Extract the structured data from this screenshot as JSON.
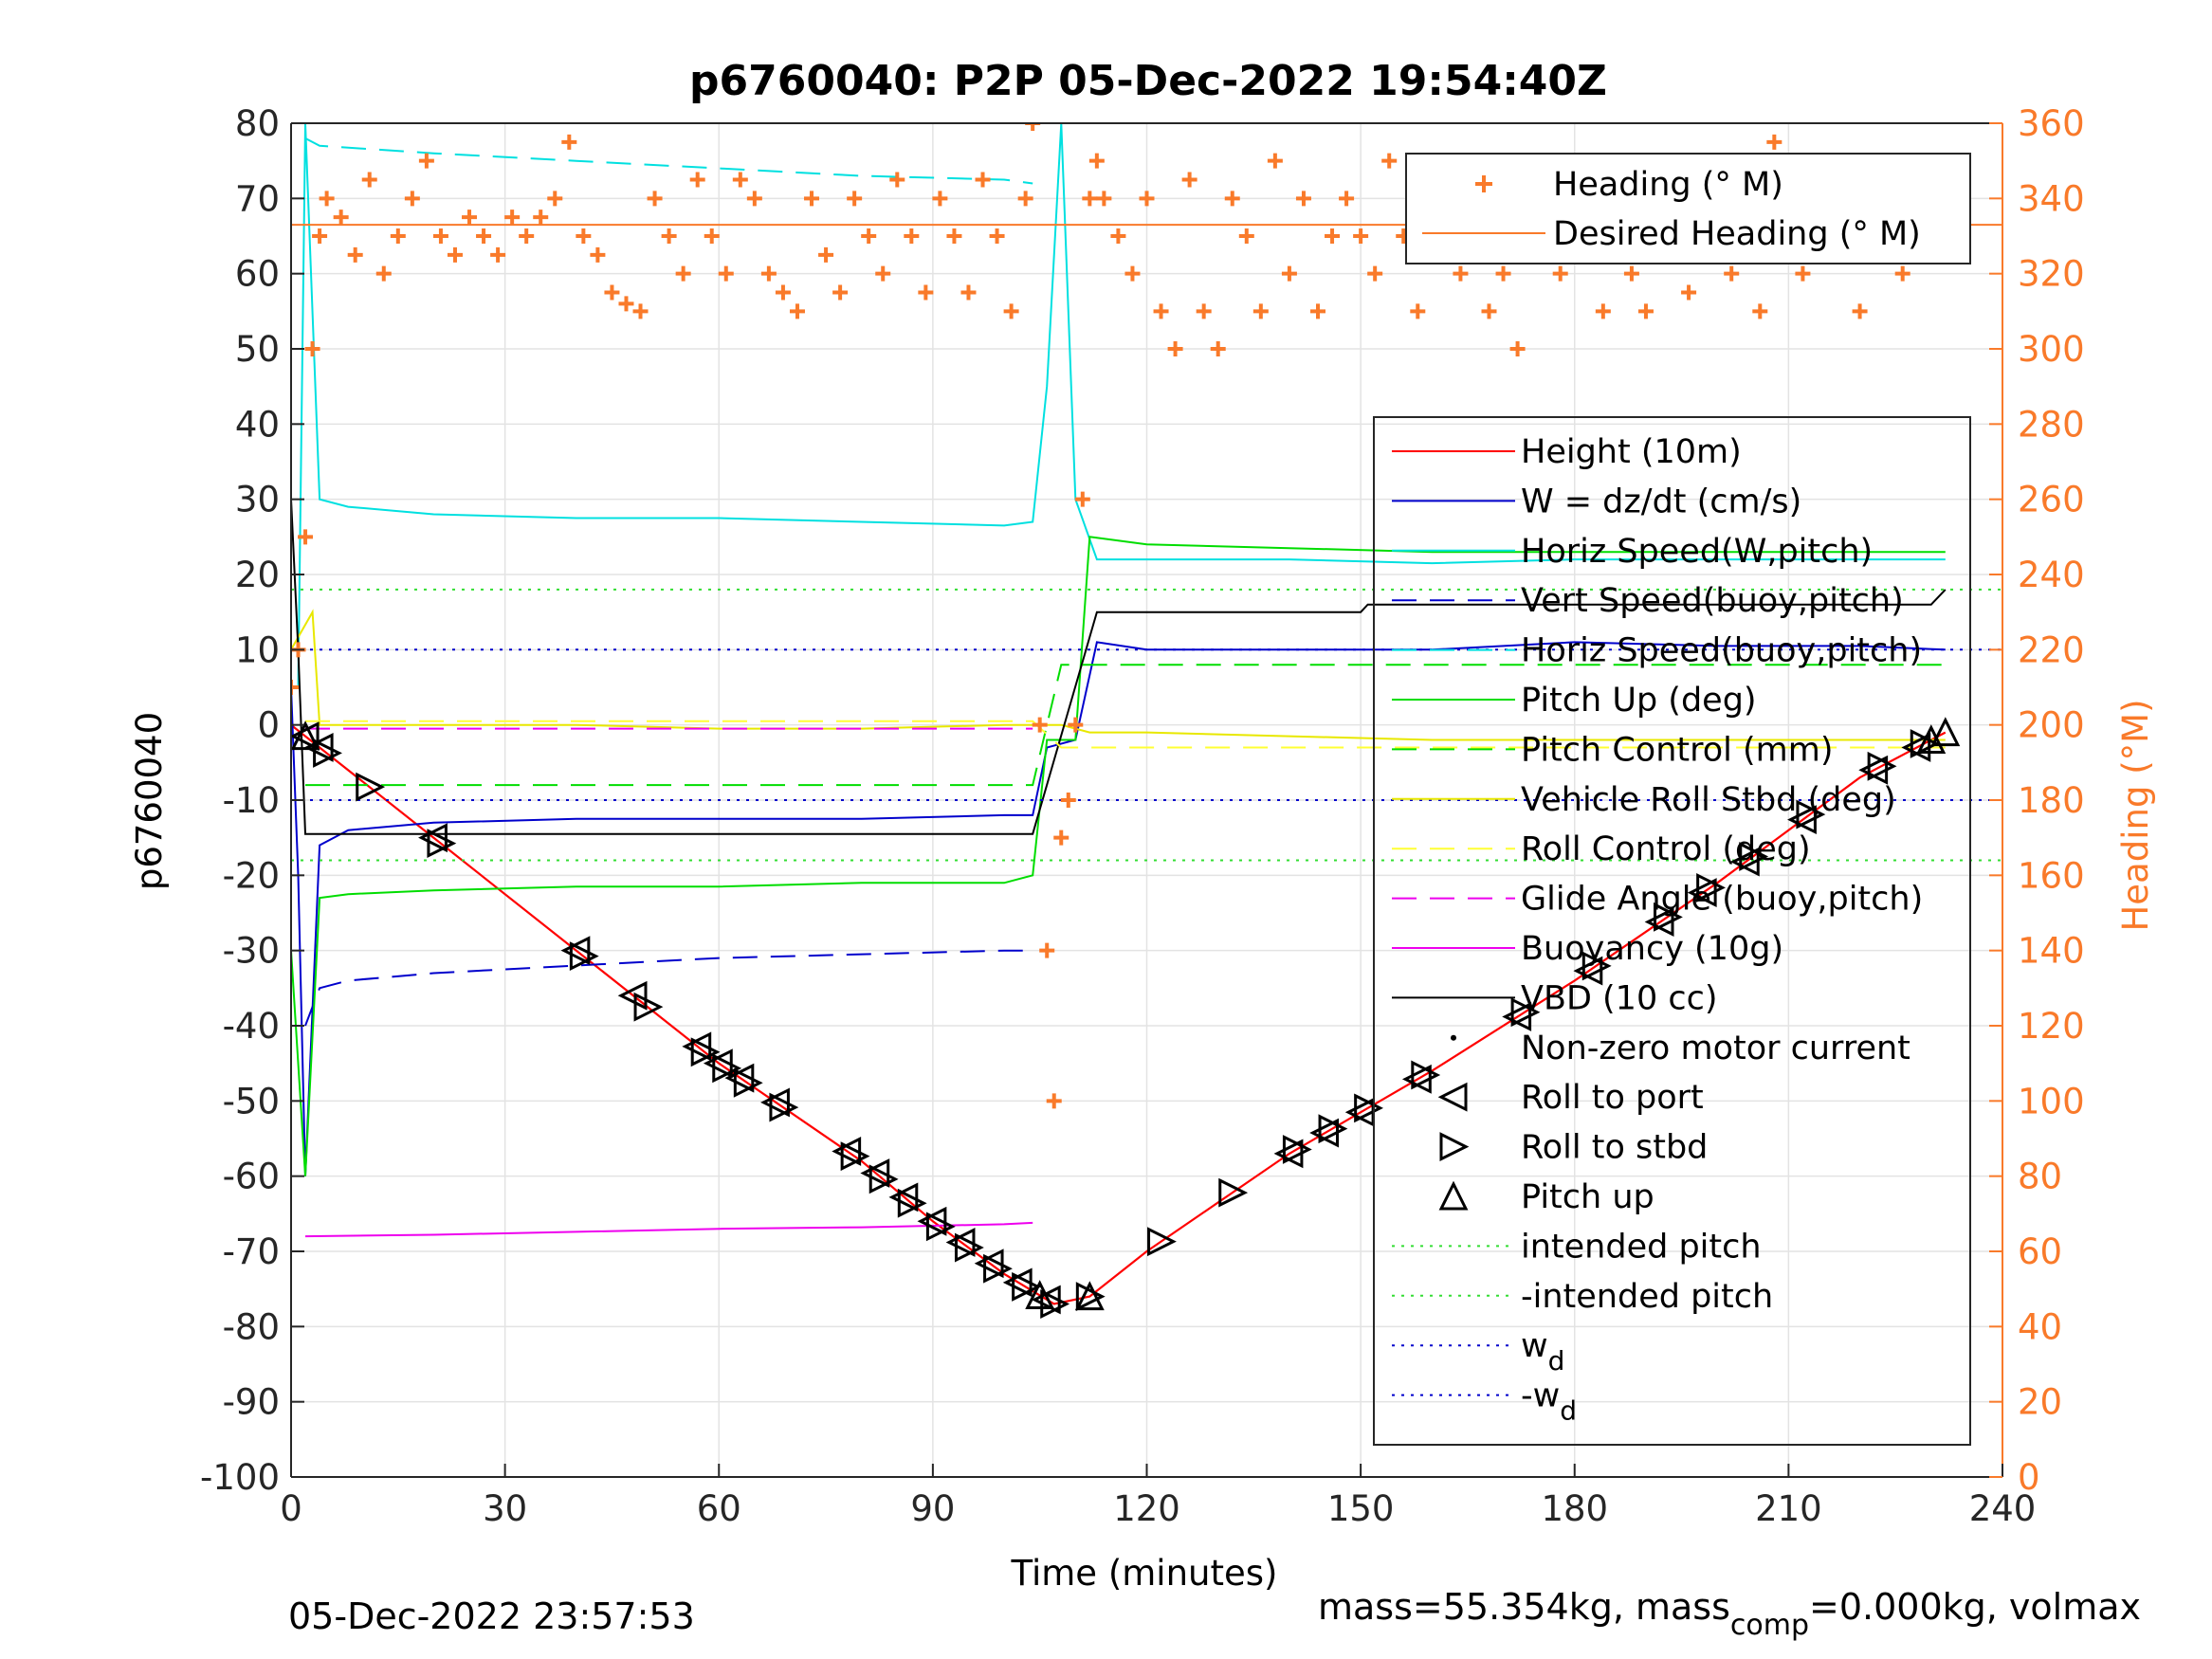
{
  "chart_data": {
    "type": "line",
    "title": "p6760040: P2P 05-Dec-2022 19:54:40Z",
    "xlabel": "Time (minutes)",
    "ylabel": "p6760040",
    "ylabel_right": "Heading (°M)",
    "xlim": [
      0,
      240
    ],
    "ylim": [
      -100,
      80
    ],
    "ylim_right": [
      0,
      360
    ],
    "x_ticks": [
      0,
      30,
      60,
      90,
      120,
      150,
      180,
      210,
      240
    ],
    "y_ticks": [
      80,
      70,
      60,
      50,
      40,
      30,
      20,
      10,
      0,
      -10,
      -20,
      -30,
      -40,
      -50,
      -60,
      -70,
      -80,
      -90,
      -100
    ],
    "y_right_ticks": [
      360,
      340,
      320,
      300,
      280,
      260,
      240,
      220,
      200,
      180,
      160,
      140,
      120,
      100,
      80,
      60,
      40,
      20,
      0
    ],
    "grid": true,
    "footer_left": "05-Dec-2022 23:57:53",
    "footer_right_pre": "mass=55.354kg, mass",
    "footer_right_sub": "comp",
    "footer_right_post": "=0.000kg, volmax",
    "legend_heading": [
      {
        "name": "Heading (° M)",
        "color": "#f97a2a",
        "style": "marker-plus"
      },
      {
        "name": "Desired Heading (° M)",
        "color": "#f97a2a",
        "style": "solid"
      }
    ],
    "legend_main": [
      {
        "name": "Height (10m)",
        "color": "#ff0000",
        "style": "solid"
      },
      {
        "name": "W = dz/dt (cm/s)",
        "color": "#0000cc",
        "style": "solid"
      },
      {
        "name": "Horiz Speed(W,pitch)",
        "color": "#00e0e0",
        "style": "solid"
      },
      {
        "name": "Vert Speed(buoy,pitch)",
        "color": "#0000cc",
        "style": "dashed"
      },
      {
        "name": "Horiz Speed(buoy,pitch)",
        "color": "#00e0e0",
        "style": "dashed"
      },
      {
        "name": "Pitch Up (deg)",
        "color": "#00dd00",
        "style": "solid"
      },
      {
        "name": "Pitch Control (mm)",
        "color": "#00dd00",
        "style": "dashed"
      },
      {
        "name": "Vehicle Roll Stbd (deg)",
        "color": "#e8e800",
        "style": "solid"
      },
      {
        "name": "Roll Control (deg)",
        "color": "#ffff33",
        "style": "dashed"
      },
      {
        "name": "Glide Angle (buoy,pitch)",
        "color": "#ee00ee",
        "style": "dashed"
      },
      {
        "name": "Buoyancy (10g)",
        "color": "#ee00ee",
        "style": "solid"
      },
      {
        "name": "VBD (10 cc)",
        "color": "#000000",
        "style": "solid"
      },
      {
        "name": "Non-zero motor current",
        "color": "#000000",
        "style": "dot"
      },
      {
        "name": "Roll to port",
        "color": "#000000",
        "style": "tri-left"
      },
      {
        "name": "Roll to stbd",
        "color": "#000000",
        "style": "tri-right"
      },
      {
        "name": "Pitch up",
        "color": "#000000",
        "style": "tri-up"
      },
      {
        "name": "intended pitch",
        "color": "#33dd33",
        "style": "dotted"
      },
      {
        "name": "-intended pitch",
        "color": "#33dd33",
        "style": "dotted"
      },
      {
        "name": "w",
        "sub": "d",
        "color": "#0000cc",
        "style": "dotted"
      },
      {
        "name": "-w",
        "sub": "d",
        "color": "#0000cc",
        "style": "dotted"
      }
    ],
    "series": [
      {
        "name": "Height (10m)",
        "axis": "left",
        "color": "#ff0000",
        "x": [
          0,
          20,
          40,
          60,
          80,
          90,
          100,
          107,
          112,
          120,
          140,
          160,
          180,
          200,
          220,
          232
        ],
        "y": [
          0,
          -15,
          -30,
          -45,
          -58,
          -66,
          -73,
          -77,
          -76,
          -70,
          -57,
          -46,
          -34,
          -21,
          -7,
          -1
        ]
      },
      {
        "name": "W = dz/dt (cm/s)",
        "axis": "left",
        "color": "#0000cc",
        "x": [
          0,
          1,
          2,
          4,
          8,
          20,
          40,
          60,
          80,
          100,
          104,
          106,
          110,
          113,
          120,
          140,
          160,
          180,
          200,
          220,
          232
        ],
        "y": [
          5,
          -20,
          -60,
          -16,
          -14,
          -13,
          -12.5,
          -12.5,
          -12.5,
          -12,
          -12,
          -3,
          -2,
          11,
          10,
          10,
          10,
          11,
          10.5,
          10.5,
          10
        ]
      },
      {
        "name": "Vert Speed(buoy,pitch)",
        "axis": "left",
        "color": "#0000cc",
        "x": [
          2,
          4,
          8,
          20,
          40,
          60,
          80,
          100,
          104
        ],
        "y": [
          -40,
          -35,
          -34,
          -33,
          -32,
          -31,
          -30.5,
          -30,
          -30
        ]
      },
      {
        "name": "Horiz Speed(W,pitch)",
        "axis": "left",
        "color": "#00e0e0",
        "x": [
          1,
          2,
          4,
          8,
          20,
          40,
          60,
          80,
          100,
          104,
          106,
          108,
          110,
          113,
          120,
          140,
          160,
          180,
          200,
          220,
          232
        ],
        "y": [
          5,
          80,
          30,
          29,
          28,
          27.5,
          27.5,
          27,
          26.5,
          27,
          45,
          80,
          30,
          22,
          22,
          22,
          21.5,
          22,
          22,
          22,
          22
        ]
      },
      {
        "name": "Horiz Speed(buoy,pitch)",
        "axis": "left",
        "color": "#00e0e0",
        "x": [
          2,
          4,
          20,
          40,
          60,
          80,
          100,
          104
        ],
        "y": [
          78,
          77,
          76,
          75,
          74,
          73,
          72.5,
          72
        ]
      },
      {
        "name": "Pitch Up (deg)",
        "axis": "left",
        "color": "#00dd00",
        "x": [
          0,
          2,
          4,
          8,
          20,
          40,
          60,
          80,
          100,
          104,
          106,
          110,
          112,
          120,
          140,
          160,
          180,
          200,
          220,
          232
        ],
        "y": [
          -30,
          -60,
          -23,
          -22.5,
          -22,
          -21.5,
          -21.5,
          -21,
          -21,
          -20,
          -2,
          -2,
          25,
          24,
          23.5,
          23,
          23,
          23,
          23,
          23
        ]
      },
      {
        "name": "Vehicle Roll Stbd (deg)",
        "axis": "left",
        "color": "#e8e800",
        "x": [
          0,
          3,
          4,
          20,
          40,
          60,
          80,
          100,
          104,
          108,
          112,
          120,
          140,
          160,
          180,
          200,
          220,
          232
        ],
        "y": [
          10,
          15,
          0,
          0,
          0,
          -0.5,
          -0.5,
          0,
          0,
          0,
          -1,
          -1,
          -1.5,
          -2,
          -2,
          -2,
          -2,
          -2
        ]
      },
      {
        "name": "Buoyancy (10g)",
        "axis": "left",
        "color": "#ee00ee",
        "x": [
          2,
          20,
          40,
          60,
          80,
          100,
          104
        ],
        "y": [
          -68,
          -67.8,
          -67.4,
          -67,
          -66.8,
          -66.4,
          -66.2
        ]
      },
      {
        "name": "Glide Angle (buoy,pitch)",
        "axis": "left",
        "color": "#ee00ee",
        "x": [
          2,
          104
        ],
        "y": [
          -0.5,
          -0.5
        ]
      },
      {
        "name": "VBD (10 cc)",
        "axis": "left",
        "color": "#000000",
        "x": [
          0,
          1,
          2,
          104,
          113,
          150,
          151,
          230,
          232
        ],
        "y": [
          30,
          10,
          -14.5,
          -14.5,
          15,
          15,
          16,
          16,
          18
        ]
      },
      {
        "name": "Pitch Control (mm)",
        "axis": "left",
        "color": "#00dd00",
        "x": [
          2,
          104,
          108,
          232
        ],
        "y": [
          -8,
          -8,
          8,
          8
        ]
      },
      {
        "name": "Roll Control (deg)",
        "axis": "left",
        "color": "#ffff33",
        "x": [
          2,
          104,
          108,
          232
        ],
        "y": [
          0.5,
          0.5,
          -3,
          -3
        ]
      },
      {
        "name": "intended pitch",
        "axis": "left",
        "color": "#33dd33",
        "x": [
          0,
          240
        ],
        "y": [
          18,
          18
        ]
      },
      {
        "name": "-intended pitch",
        "axis": "left",
        "color": "#33dd33",
        "x": [
          0,
          240
        ],
        "y": [
          -18,
          -18
        ]
      },
      {
        "name": "w_d",
        "axis": "left",
        "color": "#0000cc",
        "x": [
          0,
          240
        ],
        "y": [
          10,
          10
        ]
      },
      {
        "name": "-w_d",
        "axis": "left",
        "color": "#0000cc",
        "x": [
          0,
          240
        ],
        "y": [
          -10,
          -10
        ]
      },
      {
        "name": "Desired Heading (° M)",
        "axis": "right",
        "color": "#f97a2a",
        "x": [
          0,
          240
        ],
        "y": [
          333,
          333
        ]
      },
      {
        "name": "Heading (° M)",
        "axis": "right",
        "color": "#f97a2a",
        "marker": "plus",
        "x": [
          0,
          1,
          2,
          3,
          4,
          5,
          7,
          9,
          11,
          13,
          15,
          17,
          19,
          21,
          23,
          25,
          27,
          29,
          31,
          33,
          35,
          37,
          39,
          41,
          43,
          45,
          47,
          49,
          51,
          53,
          55,
          57,
          59,
          61,
          63,
          65,
          67,
          69,
          71,
          73,
          75,
          77,
          79,
          81,
          83,
          85,
          87,
          89,
          91,
          93,
          95,
          97,
          99,
          101,
          103,
          104,
          105,
          106,
          107,
          108,
          109,
          110,
          111,
          112,
          113,
          114,
          116,
          118,
          120,
          122,
          124,
          126,
          128,
          130,
          132,
          134,
          136,
          138,
          140,
          142,
          144,
          146,
          148,
          150,
          152,
          154,
          156,
          158,
          160,
          162,
          164,
          166,
          168,
          170,
          172,
          174,
          176,
          178,
          180,
          182,
          184,
          186,
          188,
          190,
          192,
          194,
          196,
          198,
          200,
          202,
          204,
          206,
          208,
          210,
          212,
          214,
          216,
          218,
          220,
          222,
          224,
          226,
          228,
          230,
          232
        ],
        "y": [
          210,
          220,
          250,
          300,
          330,
          340,
          335,
          325,
          345,
          320,
          330,
          340,
          350,
          330,
          325,
          335,
          330,
          325,
          335,
          330,
          335,
          340,
          355,
          330,
          325,
          315,
          312,
          310,
          340,
          330,
          320,
          345,
          330,
          320,
          345,
          340,
          320,
          315,
          310,
          340,
          325,
          315,
          340,
          330,
          320,
          345,
          330,
          315,
          340,
          330,
          315,
          345,
          330,
          310,
          340,
          360,
          200,
          140,
          100,
          170,
          180,
          200,
          260,
          340,
          350,
          340,
          330,
          320,
          340,
          310,
          300,
          345,
          310,
          300,
          340,
          330,
          310,
          350,
          320,
          340,
          310,
          330,
          340,
          330,
          320,
          350,
          330,
          310,
          340,
          330,
          320,
          330,
          310,
          320,
          300,
          340,
          330,
          320,
          340,
          330,
          310,
          340,
          320,
          310,
          345,
          335,
          315,
          350,
          330,
          320,
          340,
          310,
          355,
          330,
          320,
          345,
          330,
          340,
          310,
          330,
          345,
          320,
          340,
          350,
          345
        ]
      }
    ],
    "markers": {
      "roll_port_x": [
        2,
        4,
        20,
        40,
        48,
        57,
        60,
        63,
        68,
        78,
        82,
        86,
        90,
        94,
        98,
        102,
        106,
        140,
        145,
        150,
        158,
        172,
        182,
        192,
        198,
        204,
        212,
        222,
        228
      ],
      "roll_stbd_x": [
        5,
        11,
        21,
        41,
        50,
        58,
        61,
        64,
        69,
        79,
        83,
        87,
        91,
        95,
        99,
        103,
        107,
        112,
        122,
        132,
        141,
        146,
        151,
        159,
        173,
        183,
        193,
        199,
        205,
        213,
        223,
        229
      ],
      "pitch_up_x": [
        2,
        105,
        112,
        230,
        232
      ]
    }
  }
}
